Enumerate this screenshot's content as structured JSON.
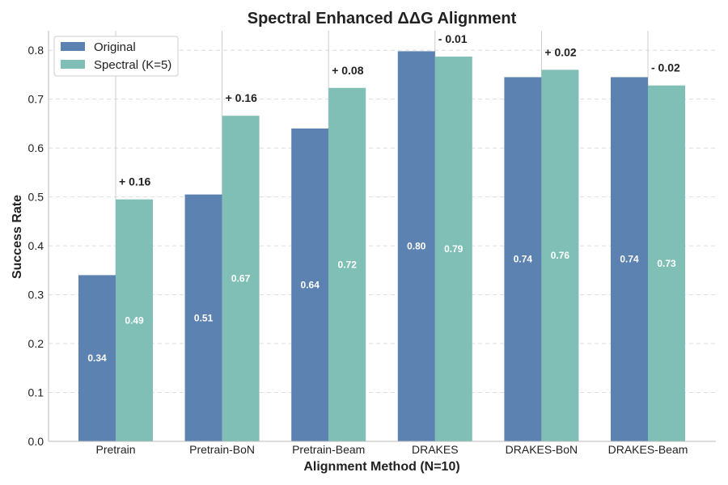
{
  "chart_data": {
    "type": "bar",
    "title": "Spectral Enhanced ΔΔG Alignment",
    "xlabel": "Alignment Method (N=10)",
    "ylabel": "Success Rate",
    "ylim": [
      0,
      0.84
    ],
    "yticks": [
      "0.0",
      "0.1",
      "0.2",
      "0.3",
      "0.4",
      "0.5",
      "0.6",
      "0.7",
      "0.8"
    ],
    "grid": true,
    "legend_position": "top-left",
    "categories": [
      "Pretrain",
      "Pretrain-BoN",
      "Pretrain-Beam",
      "DRAKES",
      "DRAKES-BoN",
      "DRAKES-Beam"
    ],
    "series": [
      {
        "name": "Original",
        "color": "#5b82b0",
        "values": [
          0.34,
          0.505,
          0.64,
          0.798,
          0.745,
          0.745
        ],
        "labels": [
          "0.34",
          "0.51",
          "0.64",
          "0.80",
          "0.74",
          "0.74"
        ]
      },
      {
        "name": "Spectral (K=5)",
        "color": "#7fbfb6",
        "values": [
          0.495,
          0.666,
          0.723,
          0.787,
          0.76,
          0.728
        ],
        "labels": [
          "0.49",
          "0.67",
          "0.72",
          "0.79",
          "0.76",
          "0.73"
        ]
      }
    ],
    "deltas": [
      "+ 0.16",
      "+ 0.16",
      "+ 0.08",
      "- 0.01",
      "+ 0.02",
      "- 0.02"
    ]
  }
}
